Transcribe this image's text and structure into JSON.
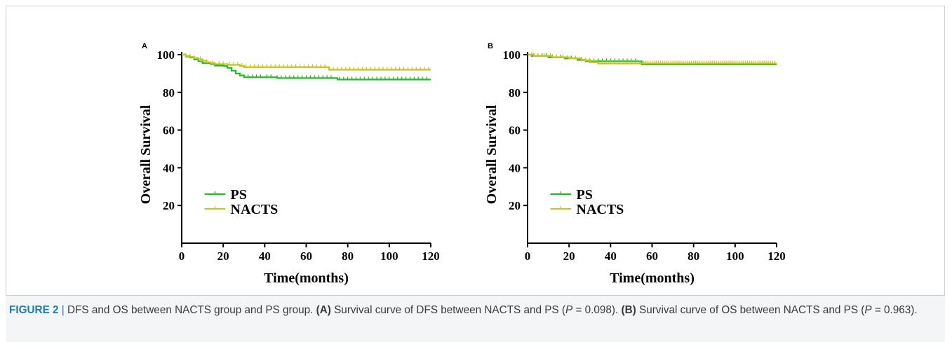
{
  "chart_data": [
    {
      "type": "line",
      "panel_label": "A",
      "xlabel": "Time(months)",
      "ylabel": "Overall Survival",
      "xlim": [
        0,
        120
      ],
      "ylim": [
        0,
        100
      ],
      "xticks": [
        "0",
        "20",
        "40",
        "60",
        "80",
        "100",
        "120"
      ],
      "yticks": [
        "20",
        "40",
        "60",
        "80",
        "100"
      ],
      "legend_position": "bottom-left",
      "series": [
        {
          "name": "PS",
          "color": "#22bb22",
          "step_points": [
            [
              0,
              100
            ],
            [
              2,
              99
            ],
            [
              4,
              98.5
            ],
            [
              6,
              97.5
            ],
            [
              8,
              96.5
            ],
            [
              10,
              95.5
            ],
            [
              14,
              95
            ],
            [
              16,
              94.2
            ],
            [
              20,
              94
            ],
            [
              22,
              93
            ],
            [
              24,
              91.5
            ],
            [
              26,
              90
            ],
            [
              28,
              89
            ],
            [
              30,
              88
            ],
            [
              32,
              88
            ],
            [
              44,
              88
            ],
            [
              46,
              87.6
            ],
            [
              74,
              87.6
            ],
            [
              75,
              86.8
            ],
            [
              120,
              86.8
            ]
          ],
          "censor_x": [
            32,
            34,
            36,
            38,
            41,
            43,
            46,
            48,
            50,
            52,
            54,
            56,
            58,
            60,
            62,
            64,
            66,
            68,
            70,
            72,
            76,
            78,
            80,
            82,
            84,
            86,
            88,
            90,
            92,
            94,
            96,
            98,
            100,
            102,
            104,
            106,
            108,
            110,
            112,
            114,
            116,
            118
          ]
        },
        {
          "name": "NACTS",
          "color": "#c8c21c",
          "step_points": [
            [
              0,
              100
            ],
            [
              2,
              99.3
            ],
            [
              4,
              98.8
            ],
            [
              6,
              98.2
            ],
            [
              8,
              97.6
            ],
            [
              10,
              96.8
            ],
            [
              12,
              96
            ],
            [
              14,
              95.5
            ],
            [
              16,
              95
            ],
            [
              22,
              94.6
            ],
            [
              28,
              94
            ],
            [
              30,
              93.4
            ],
            [
              70,
              93.4
            ],
            [
              71,
              92
            ],
            [
              120,
              92
            ]
          ],
          "censor_x": [
            2,
            4,
            6,
            9,
            12,
            15,
            18,
            20,
            23,
            25,
            27,
            29,
            31,
            33,
            35,
            37,
            39,
            41,
            43,
            45,
            47,
            49,
            51,
            53,
            55,
            57,
            59,
            61,
            63,
            65,
            67,
            69,
            73,
            75,
            77,
            79,
            81,
            83,
            85,
            87,
            89,
            91,
            93,
            95,
            97,
            99,
            101,
            103,
            105,
            107,
            109,
            111,
            113,
            115,
            117,
            119
          ]
        }
      ]
    },
    {
      "type": "line",
      "panel_label": "B",
      "xlabel": "Time(months)",
      "ylabel": "Overall Survival",
      "xlim": [
        0,
        120
      ],
      "ylim": [
        0,
        100
      ],
      "xticks": [
        "0",
        "20",
        "40",
        "60",
        "80",
        "100",
        "120"
      ],
      "yticks": [
        "20",
        "40",
        "60",
        "80",
        "100"
      ],
      "legend_position": "bottom-left",
      "series": [
        {
          "name": "PS",
          "color": "#22bb22",
          "step_points": [
            [
              0,
              100
            ],
            [
              2,
              99.3
            ],
            [
              10,
              98.6
            ],
            [
              18,
              98
            ],
            [
              24,
              97.2
            ],
            [
              28,
              96.5
            ],
            [
              54,
              96.5
            ],
            [
              55,
              94.8
            ],
            [
              120,
              94.8
            ]
          ],
          "censor_x": [
            3,
            5,
            7,
            9,
            12,
            14,
            16,
            19,
            21,
            23,
            26,
            30,
            32,
            34,
            36,
            38,
            40,
            42,
            44,
            46,
            48,
            50,
            52
          ]
        },
        {
          "name": "NACTS",
          "color": "#c8c21c",
          "step_points": [
            [
              0,
              100
            ],
            [
              3,
              99.3
            ],
            [
              12,
              98.6
            ],
            [
              20,
              98
            ],
            [
              26,
              97
            ],
            [
              30,
              96
            ],
            [
              34,
              95.3
            ],
            [
              120,
              95.3
            ]
          ],
          "censor_x": [
            2,
            5,
            8,
            11,
            14,
            17,
            23,
            28,
            32,
            36,
            38,
            40,
            42,
            44,
            46,
            48,
            50,
            52,
            54,
            56,
            57,
            58,
            59,
            60,
            61,
            62,
            63,
            64,
            65,
            66,
            67,
            68,
            69,
            70,
            71,
            72,
            73,
            74,
            75,
            76,
            77,
            78,
            79,
            80,
            81,
            82,
            83,
            84,
            85,
            86,
            87,
            88,
            89,
            90,
            91,
            92,
            93,
            94,
            95,
            96,
            97,
            98,
            99,
            100,
            101,
            102,
            103,
            104,
            105,
            106,
            107,
            108,
            109,
            110,
            111,
            112,
            113,
            114,
            115,
            116,
            117,
            118,
            119
          ]
        }
      ]
    }
  ],
  "caption": {
    "figure_label": "FIGURE 2",
    "separator": "|",
    "lead": "DFS and OS between NACTS group and PS group.",
    "part_a_label": "(A)",
    "part_a_text_1": "Survival curve of DFS between NACTS and PS (",
    "part_a_p": "P",
    "part_a_text_2": "= 0.098).",
    "part_b_label": "(B)",
    "part_b_text_1": "Survival curve of OS between NACTS and PS (",
    "part_b_p": "P",
    "part_b_text_2": "= 0.963)."
  }
}
